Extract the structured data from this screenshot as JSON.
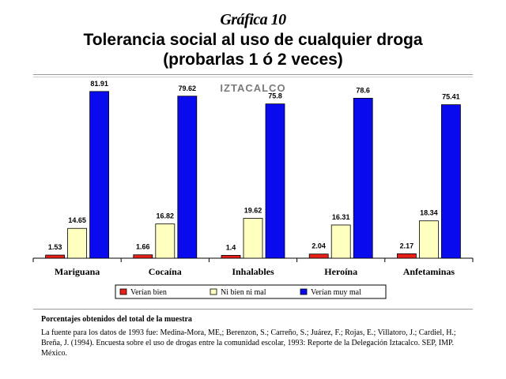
{
  "header": {
    "slide_label": "Gráfica 10",
    "title_line1": "Tolerancia social al uso de cualquier droga",
    "title_line2": "(probarlas 1 ó 2 veces)"
  },
  "chart_data": {
    "type": "bar",
    "title": "IZTACALCO",
    "categories": [
      "Mariguana",
      "Cocaína",
      "Inhalables",
      "Heroína",
      "Anfetaminas"
    ],
    "series": [
      {
        "name": "Verían bien",
        "color": "#e8201a",
        "values": [
          1.53,
          1.66,
          1.4,
          2.04,
          2.17
        ]
      },
      {
        "name": "Ni bien ni mal",
        "color": "#ffffc0",
        "values": [
          14.65,
          16.82,
          19.62,
          16.31,
          18.34
        ]
      },
      {
        "name": "Verían muy mal",
        "color": "#0a0aee",
        "values": [
          81.91,
          79.62,
          75.8,
          78.6,
          75.41
        ]
      }
    ],
    "ylim": [
      0,
      90
    ],
    "grid": false,
    "legend": "bottom",
    "xlabel": "",
    "ylabel": ""
  },
  "footer": {
    "note_title": "Porcentajes obtenidos del total de la muestra",
    "source": "La fuente para los datos de 1993 fue: Medina-Mora, ME,; Berenzon, S.; Carreño, S.; Juárez, F.; Rojas, E.; Villatoro, J.; Cardiel, H.; Breña, J. (1994). Encuesta sobre el uso de drogas entre la comunidad escolar, 1993: Reporte de la Delegación Iztacalco. SEP, IMP. México."
  }
}
